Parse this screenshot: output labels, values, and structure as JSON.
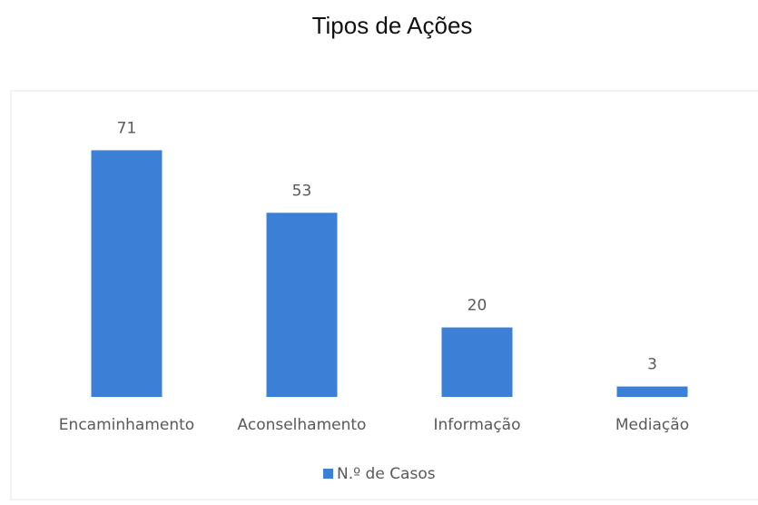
{
  "chart_data": {
    "type": "bar",
    "title": "Tipos de Ações",
    "categories": [
      "Encaminhamento",
      "Aconselhamento",
      "Informação",
      "Mediação"
    ],
    "series": [
      {
        "name": "N.º de Casos",
        "color": "#3b7fd6",
        "values": [
          71,
          53,
          20,
          3
        ]
      }
    ],
    "ylim": [
      0,
      80
    ],
    "data_labels": true,
    "legend": "bottom"
  }
}
